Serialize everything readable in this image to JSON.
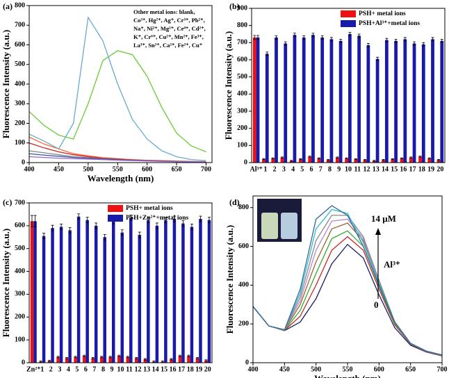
{
  "chart_data": [
    {
      "type": "line",
      "panel": "(a)",
      "xlabel": "Wavelength (nm)",
      "ylabel": "Fluorescence Intensity (a.u.)",
      "x": [
        400,
        425,
        450,
        475,
        500,
        525,
        550,
        575,
        600,
        625,
        650,
        675,
        700
      ],
      "xlim": [
        400,
        710
      ],
      "xticks": [
        400,
        450,
        500,
        550,
        600,
        650,
        700
      ],
      "ylim": [
        0,
        800
      ],
      "yticks": [
        0,
        100,
        200,
        300,
        400,
        500,
        600,
        700,
        800
      ],
      "annotation": [
        "Other metal ions: blank,",
        "Co²⁺, Hg²⁺, Ag⁺, Cr³⁺, Pb²⁺,",
        "Na⁺, Ni²⁺, Mg²⁺, Ce⁴⁺, Cd²⁺,",
        "K⁺, Cr⁶⁺, Cu²⁺, Mn²⁺, Fe³⁺,",
        "La³⁺, Sn²⁺, Ca²⁺, Fe²⁺, Cu⁺"
      ],
      "series": [
        {
          "color": "#ff6633",
          "values": [
            130,
            95,
            70,
            45,
            35,
            25,
            20,
            15,
            12,
            10,
            8,
            6,
            5
          ]
        },
        {
          "color": "#cc2222",
          "values": [
            100,
            75,
            55,
            40,
            30,
            22,
            18,
            14,
            11,
            9,
            7,
            5,
            4
          ]
        },
        {
          "color": "#888888",
          "values": [
            60,
            50,
            40,
            30,
            25,
            20,
            15,
            12,
            10,
            8,
            6,
            5,
            4
          ]
        },
        {
          "color": "#3355aa",
          "values": [
            45,
            38,
            32,
            26,
            22,
            18,
            14,
            11,
            9,
            7,
            5,
            4,
            3
          ]
        },
        {
          "color": "#9966cc",
          "values": [
            30,
            26,
            22,
            20,
            18,
            15,
            12,
            10,
            8,
            6,
            5,
            4,
            3
          ]
        },
        {
          "color": "#66cc33",
          "values": [
            260,
            190,
            140,
            120,
            300,
            520,
            570,
            550,
            440,
            280,
            150,
            85,
            55
          ]
        },
        {
          "color": "#66aacc",
          "values": [
            145,
            110,
            70,
            200,
            740,
            620,
            400,
            220,
            120,
            60,
            30,
            15,
            10
          ]
        }
      ]
    },
    {
      "type": "bar",
      "panel": "(b)",
      "ylabel": "Fluorescence Intensity (a.u.)",
      "categories": [
        "Al³⁺",
        "1",
        "2",
        "3",
        "4",
        "5",
        "6",
        "7",
        "8",
        "9",
        "10",
        "11",
        "12",
        "13",
        "14",
        "15",
        "16",
        "17",
        "18",
        "19",
        "20"
      ],
      "ylim": [
        0,
        900
      ],
      "yticks": [
        0,
        100,
        200,
        300,
        400,
        500,
        600,
        700,
        800,
        900
      ],
      "series": [
        {
          "name": "PSH+ metal ions",
          "color": "#ee1111",
          "values": [
            730,
            20,
            25,
            30,
            10,
            20,
            35,
            25,
            15,
            30,
            25,
            20,
            15,
            10,
            15,
            20,
            25,
            30,
            35,
            25,
            15
          ],
          "errors": [
            12,
            3,
            3,
            3,
            3,
            3,
            3,
            3,
            3,
            3,
            3,
            3,
            3,
            3,
            3,
            3,
            3,
            3,
            3,
            3,
            3
          ]
        },
        {
          "name": "PSH+Al³⁺+metal ions",
          "color": "#1a1aaa",
          "values": [
            730,
            635,
            730,
            695,
            745,
            730,
            745,
            730,
            720,
            710,
            750,
            740,
            685,
            605,
            715,
            710,
            720,
            695,
            690,
            720,
            710
          ],
          "errors": [
            12,
            10,
            10,
            10,
            10,
            10,
            10,
            10,
            10,
            10,
            10,
            10,
            10,
            10,
            10,
            10,
            10,
            10,
            10,
            10,
            10
          ]
        }
      ]
    },
    {
      "type": "bar",
      "panel": "(c)",
      "ylabel": "Fluorescence Intensity (a.u.)",
      "categories": [
        "Zn²⁺",
        "1",
        "2",
        "3",
        "4",
        "5",
        "6",
        "7",
        "8",
        "9",
        "10",
        "11",
        "12",
        "13",
        "14",
        "15",
        "16",
        "17",
        "18",
        "19",
        "20"
      ],
      "ylim": [
        0,
        700
      ],
      "yticks": [
        0,
        100,
        200,
        300,
        400,
        500,
        600,
        700
      ],
      "series": [
        {
          "name": "PSH+ metal ions",
          "color": "#ee1111",
          "values": [
            620,
            5,
            8,
            25,
            20,
            25,
            30,
            20,
            25,
            25,
            30,
            25,
            20,
            15,
            5,
            5,
            15,
            30,
            30,
            20,
            10
          ],
          "errors": [
            25,
            3,
            3,
            3,
            3,
            3,
            3,
            3,
            3,
            3,
            3,
            3,
            3,
            3,
            3,
            3,
            3,
            3,
            3,
            3,
            3
          ]
        },
        {
          "name": "PSH+Zn²⁺+metal ions",
          "color": "#1a1aaa",
          "values": [
            620,
            555,
            590,
            595,
            580,
            640,
            625,
            600,
            550,
            620,
            570,
            635,
            560,
            625,
            600,
            625,
            630,
            610,
            595,
            630,
            625
          ],
          "errors": [
            25,
            12,
            12,
            12,
            12,
            12,
            12,
            12,
            12,
            12,
            12,
            12,
            12,
            12,
            12,
            12,
            12,
            12,
            12,
            12,
            12
          ]
        }
      ]
    },
    {
      "type": "line",
      "panel": "(d)",
      "xlabel": "Wavelength (nm)",
      "ylabel": "Fluorescence Intensity (a.u.)",
      "x": [
        400,
        425,
        450,
        475,
        500,
        525,
        550,
        575,
        600,
        625,
        650,
        675,
        700
      ],
      "xlim": [
        400,
        700
      ],
      "xticks": [
        400,
        450,
        500,
        550,
        600,
        650,
        700
      ],
      "ylim": [
        0,
        860
      ],
      "yticks": [
        0,
        200,
        400,
        600,
        800
      ],
      "annotation": [
        "14 μM",
        "Al³⁺",
        "0"
      ],
      "series": [
        {
          "color": "#1a1a66",
          "values": [
            290,
            190,
            165,
            210,
            330,
            510,
            610,
            540,
            350,
            180,
            90,
            55,
            35
          ]
        },
        {
          "color": "#cc2222",
          "values": [
            290,
            190,
            166,
            240,
            400,
            580,
            650,
            580,
            380,
            195,
            95,
            57,
            36
          ]
        },
        {
          "color": "#33aa33",
          "values": [
            290,
            190,
            166,
            270,
            460,
            640,
            680,
            600,
            395,
            200,
            97,
            58,
            37
          ]
        },
        {
          "color": "#996633",
          "values": [
            290,
            190,
            167,
            300,
            520,
            690,
            720,
            630,
            410,
            205,
            98,
            58,
            38
          ]
        },
        {
          "color": "#bb88cc",
          "values": [
            290,
            190,
            168,
            320,
            580,
            730,
            740,
            640,
            420,
            208,
            99,
            59,
            38
          ]
        },
        {
          "color": "#888888",
          "values": [
            290,
            190,
            168,
            340,
            630,
            760,
            760,
            650,
            425,
            210,
            100,
            59,
            39
          ]
        },
        {
          "color": "#33bbcc",
          "values": [
            290,
            190,
            169,
            360,
            690,
            790,
            770,
            620,
            410,
            210,
            100,
            60,
            40
          ]
        },
        {
          "color": "#336699",
          "values": [
            290,
            190,
            170,
            380,
            740,
            810,
            760,
            600,
            400,
            210,
            100,
            60,
            40
          ]
        }
      ]
    }
  ]
}
